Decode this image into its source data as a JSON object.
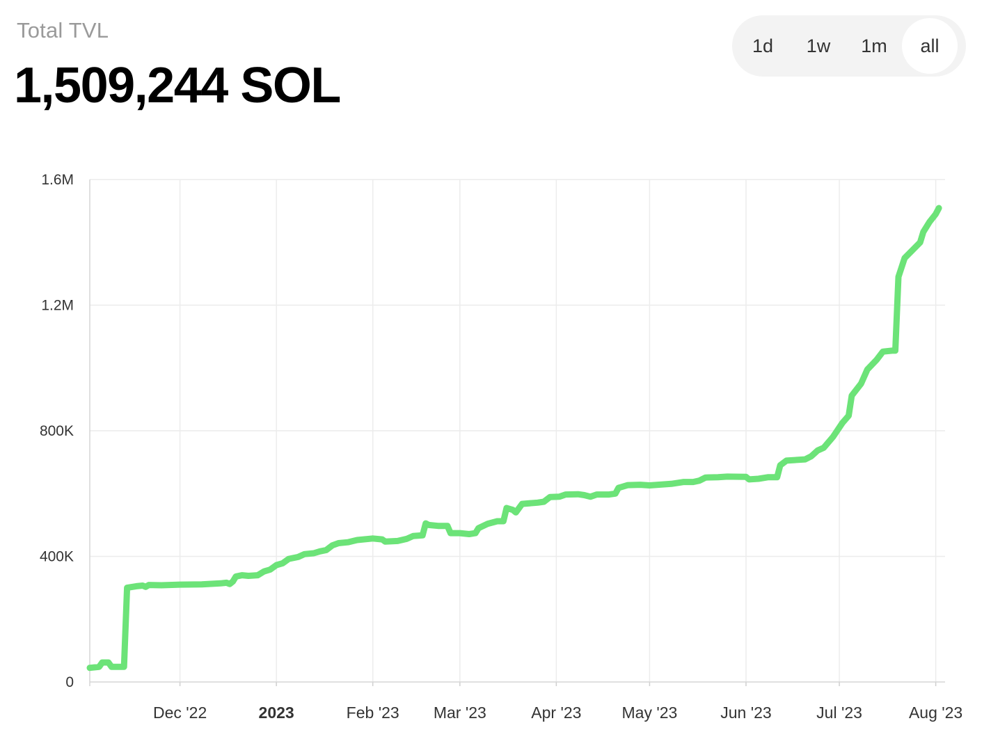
{
  "header": {
    "label": "Total TVL",
    "value": "1,509,244 SOL"
  },
  "range_toggle": {
    "options": [
      "1d",
      "1w",
      "1m",
      "all"
    ],
    "selected": "all"
  },
  "colors": {
    "line": "#6ce378",
    "grid": "#ececec",
    "axis_text": "#333333"
  },
  "chart_data": {
    "type": "line",
    "title": "",
    "xlabel": "",
    "ylabel": "",
    "ylim": [
      0,
      1600000
    ],
    "y_ticks": [
      {
        "value": 0,
        "label": "0"
      },
      {
        "value": 400000,
        "label": "400K"
      },
      {
        "value": 800000,
        "label": "800K"
      },
      {
        "value": 1200000,
        "label": "1.2M"
      },
      {
        "value": 1600000,
        "label": "1.6M"
      }
    ],
    "x_ticks": [
      {
        "date": "2022-12-01",
        "label": "Dec '22",
        "bold": false
      },
      {
        "date": "2023-01-01",
        "label": "2023",
        "bold": true
      },
      {
        "date": "2023-02-01",
        "label": "Feb '23",
        "bold": false
      },
      {
        "date": "2023-03-01",
        "label": "Mar '23",
        "bold": false
      },
      {
        "date": "2023-04-01",
        "label": "Apr '23",
        "bold": false
      },
      {
        "date": "2023-05-01",
        "label": "May '23",
        "bold": false
      },
      {
        "date": "2023-06-01",
        "label": "Jun '23",
        "bold": false
      },
      {
        "date": "2023-07-01",
        "label": "Jul '23",
        "bold": false
      },
      {
        "date": "2023-08-01",
        "label": "Aug '23",
        "bold": false
      }
    ],
    "xlim": [
      "2022-11-02",
      "2023-08-04"
    ],
    "series": [
      {
        "name": "",
        "points": [
          [
            "2022-11-02",
            45000
          ],
          [
            "2022-11-05",
            48000
          ],
          [
            "2022-11-06",
            62000
          ],
          [
            "2022-11-08",
            62000
          ],
          [
            "2022-11-09",
            48000
          ],
          [
            "2022-11-13",
            48000
          ],
          [
            "2022-11-14",
            300000
          ],
          [
            "2022-11-17",
            305000
          ],
          [
            "2022-11-19",
            307000
          ],
          [
            "2022-11-20",
            303000
          ],
          [
            "2022-11-21",
            309000
          ],
          [
            "2022-11-25",
            308000
          ],
          [
            "2022-12-01",
            310000
          ],
          [
            "2022-12-08",
            311000
          ],
          [
            "2022-12-14",
            314000
          ],
          [
            "2022-12-16",
            316000
          ],
          [
            "2022-12-17",
            312000
          ],
          [
            "2022-12-18",
            320000
          ],
          [
            "2022-12-19",
            336000
          ],
          [
            "2022-12-21",
            340000
          ],
          [
            "2022-12-23",
            338000
          ],
          [
            "2022-12-26",
            340000
          ],
          [
            "2022-12-28",
            352000
          ],
          [
            "2022-12-30",
            358000
          ],
          [
            "2023-01-01",
            372000
          ],
          [
            "2023-01-03",
            378000
          ],
          [
            "2023-01-05",
            392000
          ],
          [
            "2023-01-08",
            398000
          ],
          [
            "2023-01-10",
            407000
          ],
          [
            "2023-01-13",
            410000
          ],
          [
            "2023-01-15",
            416000
          ],
          [
            "2023-01-17",
            420000
          ],
          [
            "2023-01-19",
            435000
          ],
          [
            "2023-01-21",
            442000
          ],
          [
            "2023-01-24",
            445000
          ],
          [
            "2023-01-27",
            452000
          ],
          [
            "2023-02-01",
            457000
          ],
          [
            "2023-02-04",
            454000
          ],
          [
            "2023-02-05",
            447000
          ],
          [
            "2023-02-09",
            449000
          ],
          [
            "2023-02-12",
            456000
          ],
          [
            "2023-02-14",
            465000
          ],
          [
            "2023-02-17",
            467000
          ],
          [
            "2023-02-18",
            505000
          ],
          [
            "2023-02-19",
            500000
          ],
          [
            "2023-02-22",
            497000
          ],
          [
            "2023-02-25",
            497000
          ],
          [
            "2023-02-26",
            474000
          ],
          [
            "2023-03-01",
            474000
          ],
          [
            "2023-03-04",
            471000
          ],
          [
            "2023-03-06",
            474000
          ],
          [
            "2023-03-07",
            490000
          ],
          [
            "2023-03-10",
            504000
          ],
          [
            "2023-03-13",
            512000
          ],
          [
            "2023-03-15",
            512000
          ],
          [
            "2023-03-16",
            554000
          ],
          [
            "2023-03-18",
            548000
          ],
          [
            "2023-03-19",
            540000
          ],
          [
            "2023-03-21",
            567000
          ],
          [
            "2023-03-26",
            571000
          ],
          [
            "2023-03-28",
            574000
          ],
          [
            "2023-03-30",
            589000
          ],
          [
            "2023-04-02",
            590000
          ],
          [
            "2023-04-04",
            597000
          ],
          [
            "2023-04-08",
            598000
          ],
          [
            "2023-04-10",
            595000
          ],
          [
            "2023-04-12",
            590000
          ],
          [
            "2023-04-14",
            597000
          ],
          [
            "2023-04-18",
            597000
          ],
          [
            "2023-04-20",
            600000
          ],
          [
            "2023-04-21",
            618000
          ],
          [
            "2023-04-24",
            627000
          ],
          [
            "2023-04-28",
            628000
          ],
          [
            "2023-05-01",
            626000
          ],
          [
            "2023-05-08",
            631000
          ],
          [
            "2023-05-12",
            637000
          ],
          [
            "2023-05-15",
            637000
          ],
          [
            "2023-05-17",
            641000
          ],
          [
            "2023-05-19",
            651000
          ],
          [
            "2023-05-23",
            652000
          ],
          [
            "2023-05-26",
            654000
          ],
          [
            "2023-06-01",
            653000
          ],
          [
            "2023-06-02",
            645000
          ],
          [
            "2023-06-05",
            647000
          ],
          [
            "2023-06-08",
            652000
          ],
          [
            "2023-06-11",
            652000
          ],
          [
            "2023-06-12",
            690000
          ],
          [
            "2023-06-14",
            705000
          ],
          [
            "2023-06-20",
            709000
          ],
          [
            "2023-06-22",
            719000
          ],
          [
            "2023-06-24",
            737000
          ],
          [
            "2023-06-26",
            746000
          ],
          [
            "2023-06-29",
            781000
          ],
          [
            "2023-07-02",
            825000
          ],
          [
            "2023-07-04",
            848000
          ],
          [
            "2023-07-05",
            912000
          ],
          [
            "2023-07-08",
            950000
          ],
          [
            "2023-07-10",
            995000
          ],
          [
            "2023-07-13",
            1026000
          ],
          [
            "2023-07-15",
            1052000
          ],
          [
            "2023-07-18",
            1055000
          ],
          [
            "2023-07-19",
            1055000
          ],
          [
            "2023-07-20",
            1290000
          ],
          [
            "2023-07-22",
            1350000
          ],
          [
            "2023-07-25",
            1380000
          ],
          [
            "2023-07-27",
            1400000
          ],
          [
            "2023-07-28",
            1433000
          ],
          [
            "2023-07-30",
            1465000
          ],
          [
            "2023-08-01",
            1490000
          ],
          [
            "2023-08-02",
            1509244
          ]
        ]
      }
    ]
  }
}
